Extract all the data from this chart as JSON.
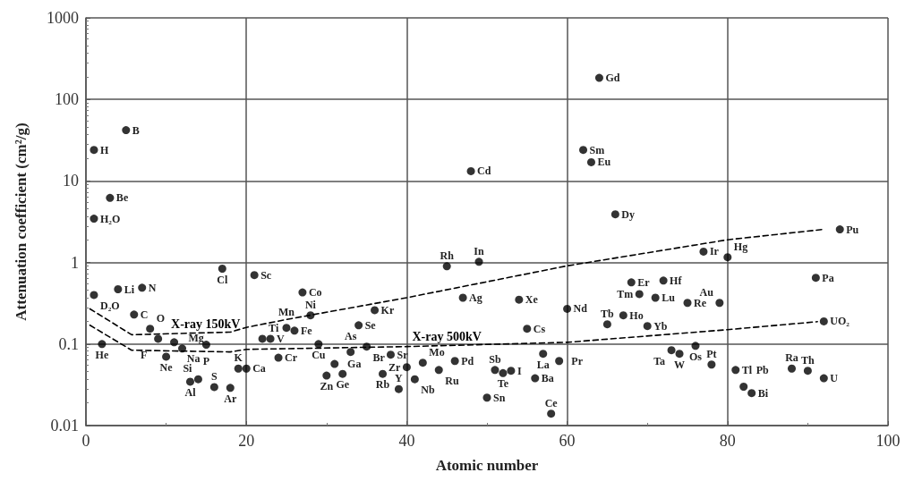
{
  "chart_data": {
    "type": "scatter",
    "xlabel": "Atomic number",
    "ylabel": "Attenuation coefficient (cm²/g)",
    "xlim": [
      0,
      100
    ],
    "xticks": [
      0,
      20,
      40,
      60,
      80,
      100
    ],
    "ylim": [
      0.01,
      1000
    ],
    "yticks": [
      0.01,
      0.1,
      1,
      10,
      100,
      1000
    ],
    "log": "y",
    "grid": true,
    "legend": false,
    "marker": "circle",
    "series": [
      {
        "color": "#000000",
        "x": [
          1,
          5,
          3,
          1,
          1,
          4,
          7,
          6,
          8,
          9,
          11,
          10,
          12,
          15,
          2,
          13,
          14,
          16,
          18,
          19,
          20,
          17,
          21,
          22,
          23,
          24,
          25,
          26,
          27,
          28,
          29,
          30,
          31,
          32,
          33,
          34,
          35,
          36,
          37,
          38,
          39,
          40,
          41,
          42,
          44,
          45,
          46,
          47,
          48,
          49,
          50,
          51,
          52,
          53,
          54,
          55,
          56,
          57,
          58,
          59,
          60,
          62,
          63,
          64,
          66,
          65,
          67,
          68,
          69,
          70,
          71,
          72,
          73,
          74,
          75,
          76,
          77,
          78,
          79,
          80,
          81,
          82,
          83,
          88,
          90,
          92,
          91,
          92,
          94
        ],
        "values": [
          24,
          42,
          6.2,
          3.45,
          0.4,
          0.47,
          0.49,
          0.23,
          0.154,
          0.116,
          0.105,
          0.07,
          0.088,
          0.098,
          0.1,
          0.0345,
          0.037,
          0.0297,
          0.029,
          0.05,
          0.05,
          0.84,
          0.7,
          0.116,
          0.116,
          0.068,
          0.158,
          0.146,
          0.43,
          0.225,
          0.1,
          0.041,
          0.057,
          0.043,
          0.08,
          0.17,
          0.093,
          0.26,
          0.043,
          0.074,
          0.028,
          0.052,
          0.037,
          0.059,
          0.048,
          0.9,
          0.062,
          0.37,
          13.2,
          1.02,
          0.022,
          0.048,
          0.044,
          0.047,
          0.35,
          0.154,
          0.038,
          0.076,
          0.014,
          0.062,
          0.27,
          24,
          17,
          184,
          3.9,
          0.175,
          0.225,
          0.57,
          0.41,
          0.166,
          0.37,
          0.6,
          0.084,
          0.076,
          0.32,
          0.095,
          1.36,
          0.056,
          0.32,
          1.16,
          0.048,
          0.03,
          0.025,
          0.05,
          0.047,
          0.038,
          0.65,
          0.19,
          2.55
        ]
      },
      {
        "type": "line",
        "name": "X-ray 150kV",
        "color": "#000000",
        "line_style": "dashed",
        "marker": "none",
        "x": [
          0.5,
          5.7,
          18,
          20,
          25,
          40,
          60,
          80,
          92
        ],
        "values": [
          0.27,
          0.13,
          0.14,
          0.16,
          0.2,
          0.37,
          0.91,
          1.9,
          2.55
        ]
      },
      {
        "type": "line",
        "name": "X-ray 500kV",
        "color": "#000000",
        "line_style": "dashed",
        "marker": "none",
        "x": [
          0.5,
          5.7,
          18,
          20,
          40,
          60,
          80,
          91.2
        ],
        "values": [
          0.17,
          0.084,
          0.08,
          0.086,
          0.093,
          0.105,
          0.15,
          0.188
        ]
      }
    ],
    "annotations": [
      {
        "text": "H",
        "x": 1,
        "y": 24
      },
      {
        "text": "B",
        "x": 5,
        "y": 42
      },
      {
        "text": "Be",
        "x": 3,
        "y": 6.2
      },
      {
        "text": "H₂O",
        "x": 1,
        "y": 3.45
      },
      {
        "text": "D₂O",
        "x": 1,
        "y": 0.4
      },
      {
        "text": "Li",
        "x": 4,
        "y": 0.47
      },
      {
        "text": "N",
        "x": 7,
        "y": 0.49
      },
      {
        "text": "C",
        "x": 6,
        "y": 0.23
      },
      {
        "text": "O",
        "x": 8,
        "y": 0.154
      },
      {
        "text": "F",
        "x": 9,
        "y": 0.116
      },
      {
        "text": "Na",
        "x": 11,
        "y": 0.105
      },
      {
        "text": "Ne",
        "x": 10,
        "y": 0.07
      },
      {
        "text": "Mg",
        "x": 12,
        "y": 0.088
      },
      {
        "text": "P",
        "x": 15,
        "y": 0.098
      },
      {
        "text": "He",
        "x": 2,
        "y": 0.1
      },
      {
        "text": "Al",
        "x": 13,
        "y": 0.0345
      },
      {
        "text": "Si",
        "x": 14,
        "y": 0.037
      },
      {
        "text": "S",
        "x": 16,
        "y": 0.0297
      },
      {
        "text": "Ar",
        "x": 18,
        "y": 0.029
      },
      {
        "text": "K",
        "x": 19,
        "y": 0.05
      },
      {
        "text": "Ca",
        "x": 20,
        "y": 0.05
      },
      {
        "text": "Cl",
        "x": 17,
        "y": 0.84
      },
      {
        "text": "Sc",
        "x": 21,
        "y": 0.7
      },
      {
        "text": "Ti",
        "x": 22,
        "y": 0.116
      },
      {
        "text": "V",
        "x": 23,
        "y": 0.116
      },
      {
        "text": "Cr",
        "x": 24,
        "y": 0.068
      },
      {
        "text": "Mn",
        "x": 25,
        "y": 0.158
      },
      {
        "text": "Fe",
        "x": 26,
        "y": 0.146
      },
      {
        "text": "Co",
        "x": 27,
        "y": 0.43
      },
      {
        "text": "Ni",
        "x": 28,
        "y": 0.225
      },
      {
        "text": "Cu",
        "x": 29,
        "y": 0.1
      },
      {
        "text": "Zn",
        "x": 30,
        "y": 0.041
      },
      {
        "text": "Ga",
        "x": 31,
        "y": 0.057
      },
      {
        "text": "Ge",
        "x": 32,
        "y": 0.043
      },
      {
        "text": "As",
        "x": 33,
        "y": 0.08
      },
      {
        "text": "Se",
        "x": 34,
        "y": 0.17
      },
      {
        "text": "Br",
        "x": 35,
        "y": 0.093
      },
      {
        "text": "Kr",
        "x": 36,
        "y": 0.26
      },
      {
        "text": "Rb",
        "x": 37,
        "y": 0.043
      },
      {
        "text": "Sr",
        "x": 38,
        "y": 0.074
      },
      {
        "text": "Y",
        "x": 39,
        "y": 0.028
      },
      {
        "text": "Zr",
        "x": 40,
        "y": 0.052
      },
      {
        "text": "Nb",
        "x": 41,
        "y": 0.037
      },
      {
        "text": "Mo",
        "x": 42,
        "y": 0.059
      },
      {
        "text": "Ru",
        "x": 44,
        "y": 0.048
      },
      {
        "text": "Rh",
        "x": 45,
        "y": 0.9
      },
      {
        "text": "Pd",
        "x": 46,
        "y": 0.062
      },
      {
        "text": "Ag",
        "x": 47,
        "y": 0.37
      },
      {
        "text": "Cd",
        "x": 48,
        "y": 13.2
      },
      {
        "text": "In",
        "x": 49,
        "y": 1.02
      },
      {
        "text": "Sn",
        "x": 50,
        "y": 0.022
      },
      {
        "text": "Sb",
        "x": 51,
        "y": 0.048
      },
      {
        "text": "Te",
        "x": 52,
        "y": 0.044
      },
      {
        "text": "I",
        "x": 53,
        "y": 0.047
      },
      {
        "text": "Xe",
        "x": 54,
        "y": 0.35
      },
      {
        "text": "Cs",
        "x": 55,
        "y": 0.154
      },
      {
        "text": "Ba",
        "x": 56,
        "y": 0.038
      },
      {
        "text": "La",
        "x": 57,
        "y": 0.076
      },
      {
        "text": "Ce",
        "x": 58,
        "y": 0.014
      },
      {
        "text": "Pr",
        "x": 59,
        "y": 0.062
      },
      {
        "text": "Nd",
        "x": 60,
        "y": 0.27
      },
      {
        "text": "Sm",
        "x": 62,
        "y": 24
      },
      {
        "text": "Eu",
        "x": 63,
        "y": 17
      },
      {
        "text": "Gd",
        "x": 64,
        "y": 184
      },
      {
        "text": "Dy",
        "x": 66,
        "y": 3.9
      },
      {
        "text": "Tb",
        "x": 65,
        "y": 0.175
      },
      {
        "text": "Ho",
        "x": 67,
        "y": 0.225
      },
      {
        "text": "Er",
        "x": 68,
        "y": 0.57
      },
      {
        "text": "Tm",
        "x": 69,
        "y": 0.41
      },
      {
        "text": "Yb",
        "x": 70,
        "y": 0.166
      },
      {
        "text": "Lu",
        "x": 71,
        "y": 0.37
      },
      {
        "text": "Hf",
        "x": 72,
        "y": 0.6
      },
      {
        "text": "Ta",
        "x": 73,
        "y": 0.084
      },
      {
        "text": "W",
        "x": 74,
        "y": 0.076
      },
      {
        "text": "Re",
        "x": 75,
        "y": 0.32
      },
      {
        "text": "Os",
        "x": 76,
        "y": 0.095
      },
      {
        "text": "Ir",
        "x": 77,
        "y": 1.36
      },
      {
        "text": "Pt",
        "x": 78,
        "y": 0.056
      },
      {
        "text": "Au",
        "x": 79,
        "y": 0.32
      },
      {
        "text": "Hg",
        "x": 80,
        "y": 1.16
      },
      {
        "text": "Tl",
        "x": 81,
        "y": 0.048
      },
      {
        "text": "Pb",
        "x": 82,
        "y": 0.03
      },
      {
        "text": "Bi",
        "x": 83,
        "y": 0.025
      },
      {
        "text": "Ra",
        "x": 88,
        "y": 0.05
      },
      {
        "text": "Th",
        "x": 90,
        "y": 0.047
      },
      {
        "text": "U",
        "x": 92,
        "y": 0.038
      },
      {
        "text": "Pa",
        "x": 91,
        "y": 0.65
      },
      {
        "text": "UO₂",
        "x": 92,
        "y": 0.19
      },
      {
        "text": "Pu",
        "x": 94,
        "y": 2.55
      }
    ]
  }
}
